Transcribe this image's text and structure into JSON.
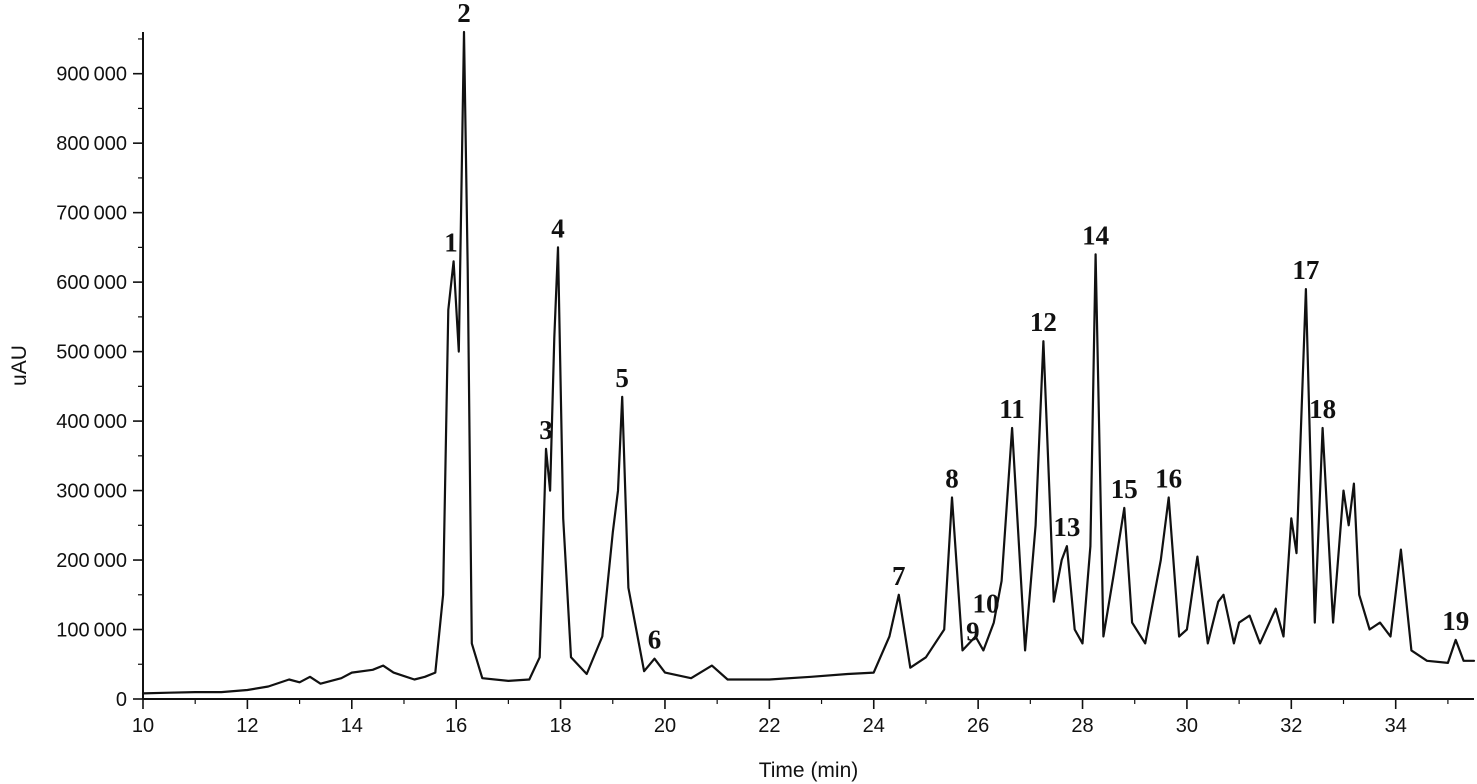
{
  "chart_data": {
    "type": "line",
    "title": "",
    "xlabel": "Time (min)",
    "ylabel": "uAU",
    "xlim": [
      10,
      35.5
    ],
    "ylim": [
      0,
      960000
    ],
    "grid": false,
    "x_ticks": [
      10,
      12,
      14,
      16,
      18,
      20,
      22,
      24,
      26,
      28,
      30,
      32,
      34
    ],
    "x_tick_labels": [
      "10",
      "12",
      "14",
      "16",
      "18",
      "20",
      "22",
      "24",
      "26",
      "28",
      "30",
      "32",
      "34"
    ],
    "y_ticks": [
      0,
      100000,
      200000,
      300000,
      400000,
      500000,
      600000,
      700000,
      800000,
      900000
    ],
    "y_tick_labels": [
      "0",
      "100000",
      "200000",
      "300000",
      "400000",
      "500000",
      "600000",
      "700000",
      "800000",
      "900000"
    ],
    "series": [
      {
        "x": [
          10.0,
          10.5,
          11.0,
          11.5,
          12.0,
          12.4,
          12.8,
          13.0,
          13.2,
          13.4,
          13.8,
          14.0,
          14.4,
          14.6,
          14.8,
          15.0,
          15.2,
          15.4,
          15.6,
          15.75,
          15.85,
          15.95,
          16.05,
          16.15,
          16.22,
          16.3,
          16.5,
          17.0,
          17.4,
          17.6,
          17.72,
          17.8,
          17.88,
          17.95,
          18.05,
          18.2,
          18.5,
          18.8,
          19.0,
          19.1,
          19.18,
          19.3,
          19.6,
          19.8,
          20.0,
          20.5,
          20.9,
          21.2,
          22.0,
          22.8,
          23.5,
          24.0,
          24.3,
          24.48,
          24.7,
          25.0,
          25.35,
          25.5,
          25.7,
          25.95,
          26.1,
          26.3,
          26.45,
          26.65,
          26.9,
          27.1,
          27.25,
          27.45,
          27.6,
          27.7,
          27.85,
          28.0,
          28.15,
          28.25,
          28.4,
          28.6,
          28.8,
          28.95,
          29.2,
          29.5,
          29.65,
          29.85,
          30.0,
          30.2,
          30.4,
          30.6,
          30.7,
          30.9,
          31.0,
          31.2,
          31.4,
          31.7,
          31.85,
          32.0,
          32.1,
          32.28,
          32.45,
          32.6,
          32.8,
          33.0,
          33.1,
          33.2,
          33.3,
          33.5,
          33.7,
          33.9,
          34.1,
          34.3,
          34.6,
          35.0,
          35.15,
          35.3,
          35.5
        ],
        "y": [
          8000,
          9000,
          10000,
          10000,
          13000,
          18000,
          28000,
          24000,
          32000,
          22000,
          30000,
          38000,
          42000,
          48000,
          38000,
          33000,
          28000,
          32000,
          38000,
          150000,
          560000,
          630000,
          500000,
          960000,
          620000,
          80000,
          30000,
          26000,
          28000,
          60000,
          360000,
          300000,
          520000,
          650000,
          260000,
          60000,
          36000,
          90000,
          240000,
          300000,
          435000,
          160000,
          40000,
          58000,
          38000,
          30000,
          48000,
          28000,
          28000,
          32000,
          36000,
          38000,
          90000,
          150000,
          45000,
          60000,
          100000,
          290000,
          70000,
          90000,
          70000,
          110000,
          170000,
          390000,
          70000,
          250000,
          515000,
          140000,
          200000,
          220000,
          100000,
          80000,
          220000,
          640000,
          90000,
          180000,
          275000,
          110000,
          80000,
          200000,
          290000,
          90000,
          100000,
          205000,
          80000,
          140000,
          150000,
          80000,
          110000,
          120000,
          80000,
          130000,
          90000,
          260000,
          210000,
          590000,
          110000,
          390000,
          110000,
          300000,
          250000,
          310000,
          150000,
          100000,
          110000,
          90000,
          215000,
          70000,
          55000,
          52000,
          85000,
          55000,
          55000
        ]
      }
    ],
    "annotations": [
      {
        "text": "1",
        "x": 15.9,
        "y": 630000
      },
      {
        "text": "2",
        "x": 16.15,
        "y": 960000
      },
      {
        "text": "3",
        "x": 17.72,
        "y": 360000
      },
      {
        "text": "4",
        "x": 17.95,
        "y": 650000
      },
      {
        "text": "5",
        "x": 19.18,
        "y": 435000
      },
      {
        "text": "6",
        "x": 19.8,
        "y": 58000
      },
      {
        "text": "7",
        "x": 24.48,
        "y": 150000
      },
      {
        "text": "8",
        "x": 25.5,
        "y": 290000
      },
      {
        "text": "9",
        "x": 25.9,
        "y": 70000
      },
      {
        "text": "10",
        "x": 26.15,
        "y": 110000
      },
      {
        "text": "11",
        "x": 26.65,
        "y": 390000
      },
      {
        "text": "12",
        "x": 27.25,
        "y": 515000
      },
      {
        "text": "13",
        "x": 27.7,
        "y": 220000
      },
      {
        "text": "14",
        "x": 28.25,
        "y": 640000
      },
      {
        "text": "15",
        "x": 28.8,
        "y": 275000
      },
      {
        "text": "16",
        "x": 29.65,
        "y": 290000
      },
      {
        "text": "17",
        "x": 32.28,
        "y": 590000
      },
      {
        "text": "18",
        "x": 32.6,
        "y": 390000
      },
      {
        "text": "19",
        "x": 35.15,
        "y": 85000
      }
    ],
    "colors": {
      "line": "#111111",
      "axes": "#111111",
      "background": "#ffffff"
    }
  }
}
